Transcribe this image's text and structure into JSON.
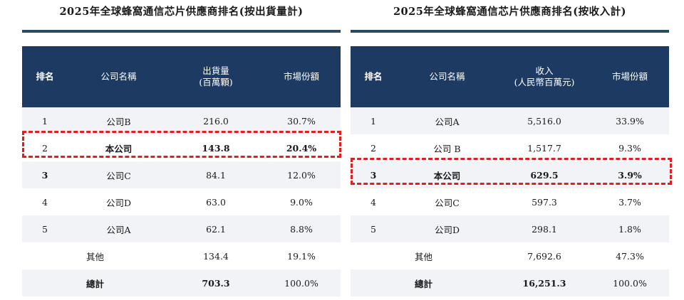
{
  "left": {
    "title": "2025年全球蜂窩通信芯片供應商排名(按出貨量計)",
    "headers": [
      "排名",
      "公司名稱",
      "出貨量\n(百萬顆)",
      "市場份額"
    ],
    "rows": [
      {
        "rank": "1",
        "name": "公司B",
        "value": "216.0",
        "share": "30.7%"
      },
      {
        "rank": "2",
        "name": "本公司",
        "value": "143.8",
        "share": "20.4%"
      },
      {
        "rank": "3",
        "name": "公司C",
        "value": "84.1",
        "share": "12.0%"
      },
      {
        "rank": "4",
        "name": "公司D",
        "value": "63.0",
        "share": "9.0%"
      },
      {
        "rank": "5",
        "name": "公司A",
        "value": "62.1",
        "share": "8.8%"
      }
    ],
    "other": {
      "name": "其他",
      "value": "134.4",
      "share": "19.1%"
    },
    "total": {
      "name": "總計",
      "value": "703.3",
      "share": "100.0%"
    }
  },
  "right": {
    "title": "2025年全球蜂窩通信芯片供應商排名(按收入計)",
    "headers": [
      "排名",
      "公司名稱",
      "收入\n(人民幣百萬元)",
      "市場份額"
    ],
    "rows": [
      {
        "rank": "1",
        "name": "公司A",
        "value": "5,516.0",
        "share": "33.9%"
      },
      {
        "rank": "2",
        "name": "公司 B",
        "value": "1,517.7",
        "share": "9.3%"
      },
      {
        "rank": "3",
        "name": "本公司",
        "value": "629.5",
        "share": "3.9%"
      },
      {
        "rank": "4",
        "name": "公司C",
        "value": "597.3",
        "share": "3.7%"
      },
      {
        "rank": "5",
        "name": "公司D",
        "value": "298.1",
        "share": "1.8%"
      }
    ],
    "other": {
      "name": "其他",
      "value": "7,692.6",
      "share": "47.3%"
    },
    "total": {
      "name": "總計",
      "value": "16,251.3",
      "share": "100.0%"
    }
  }
}
